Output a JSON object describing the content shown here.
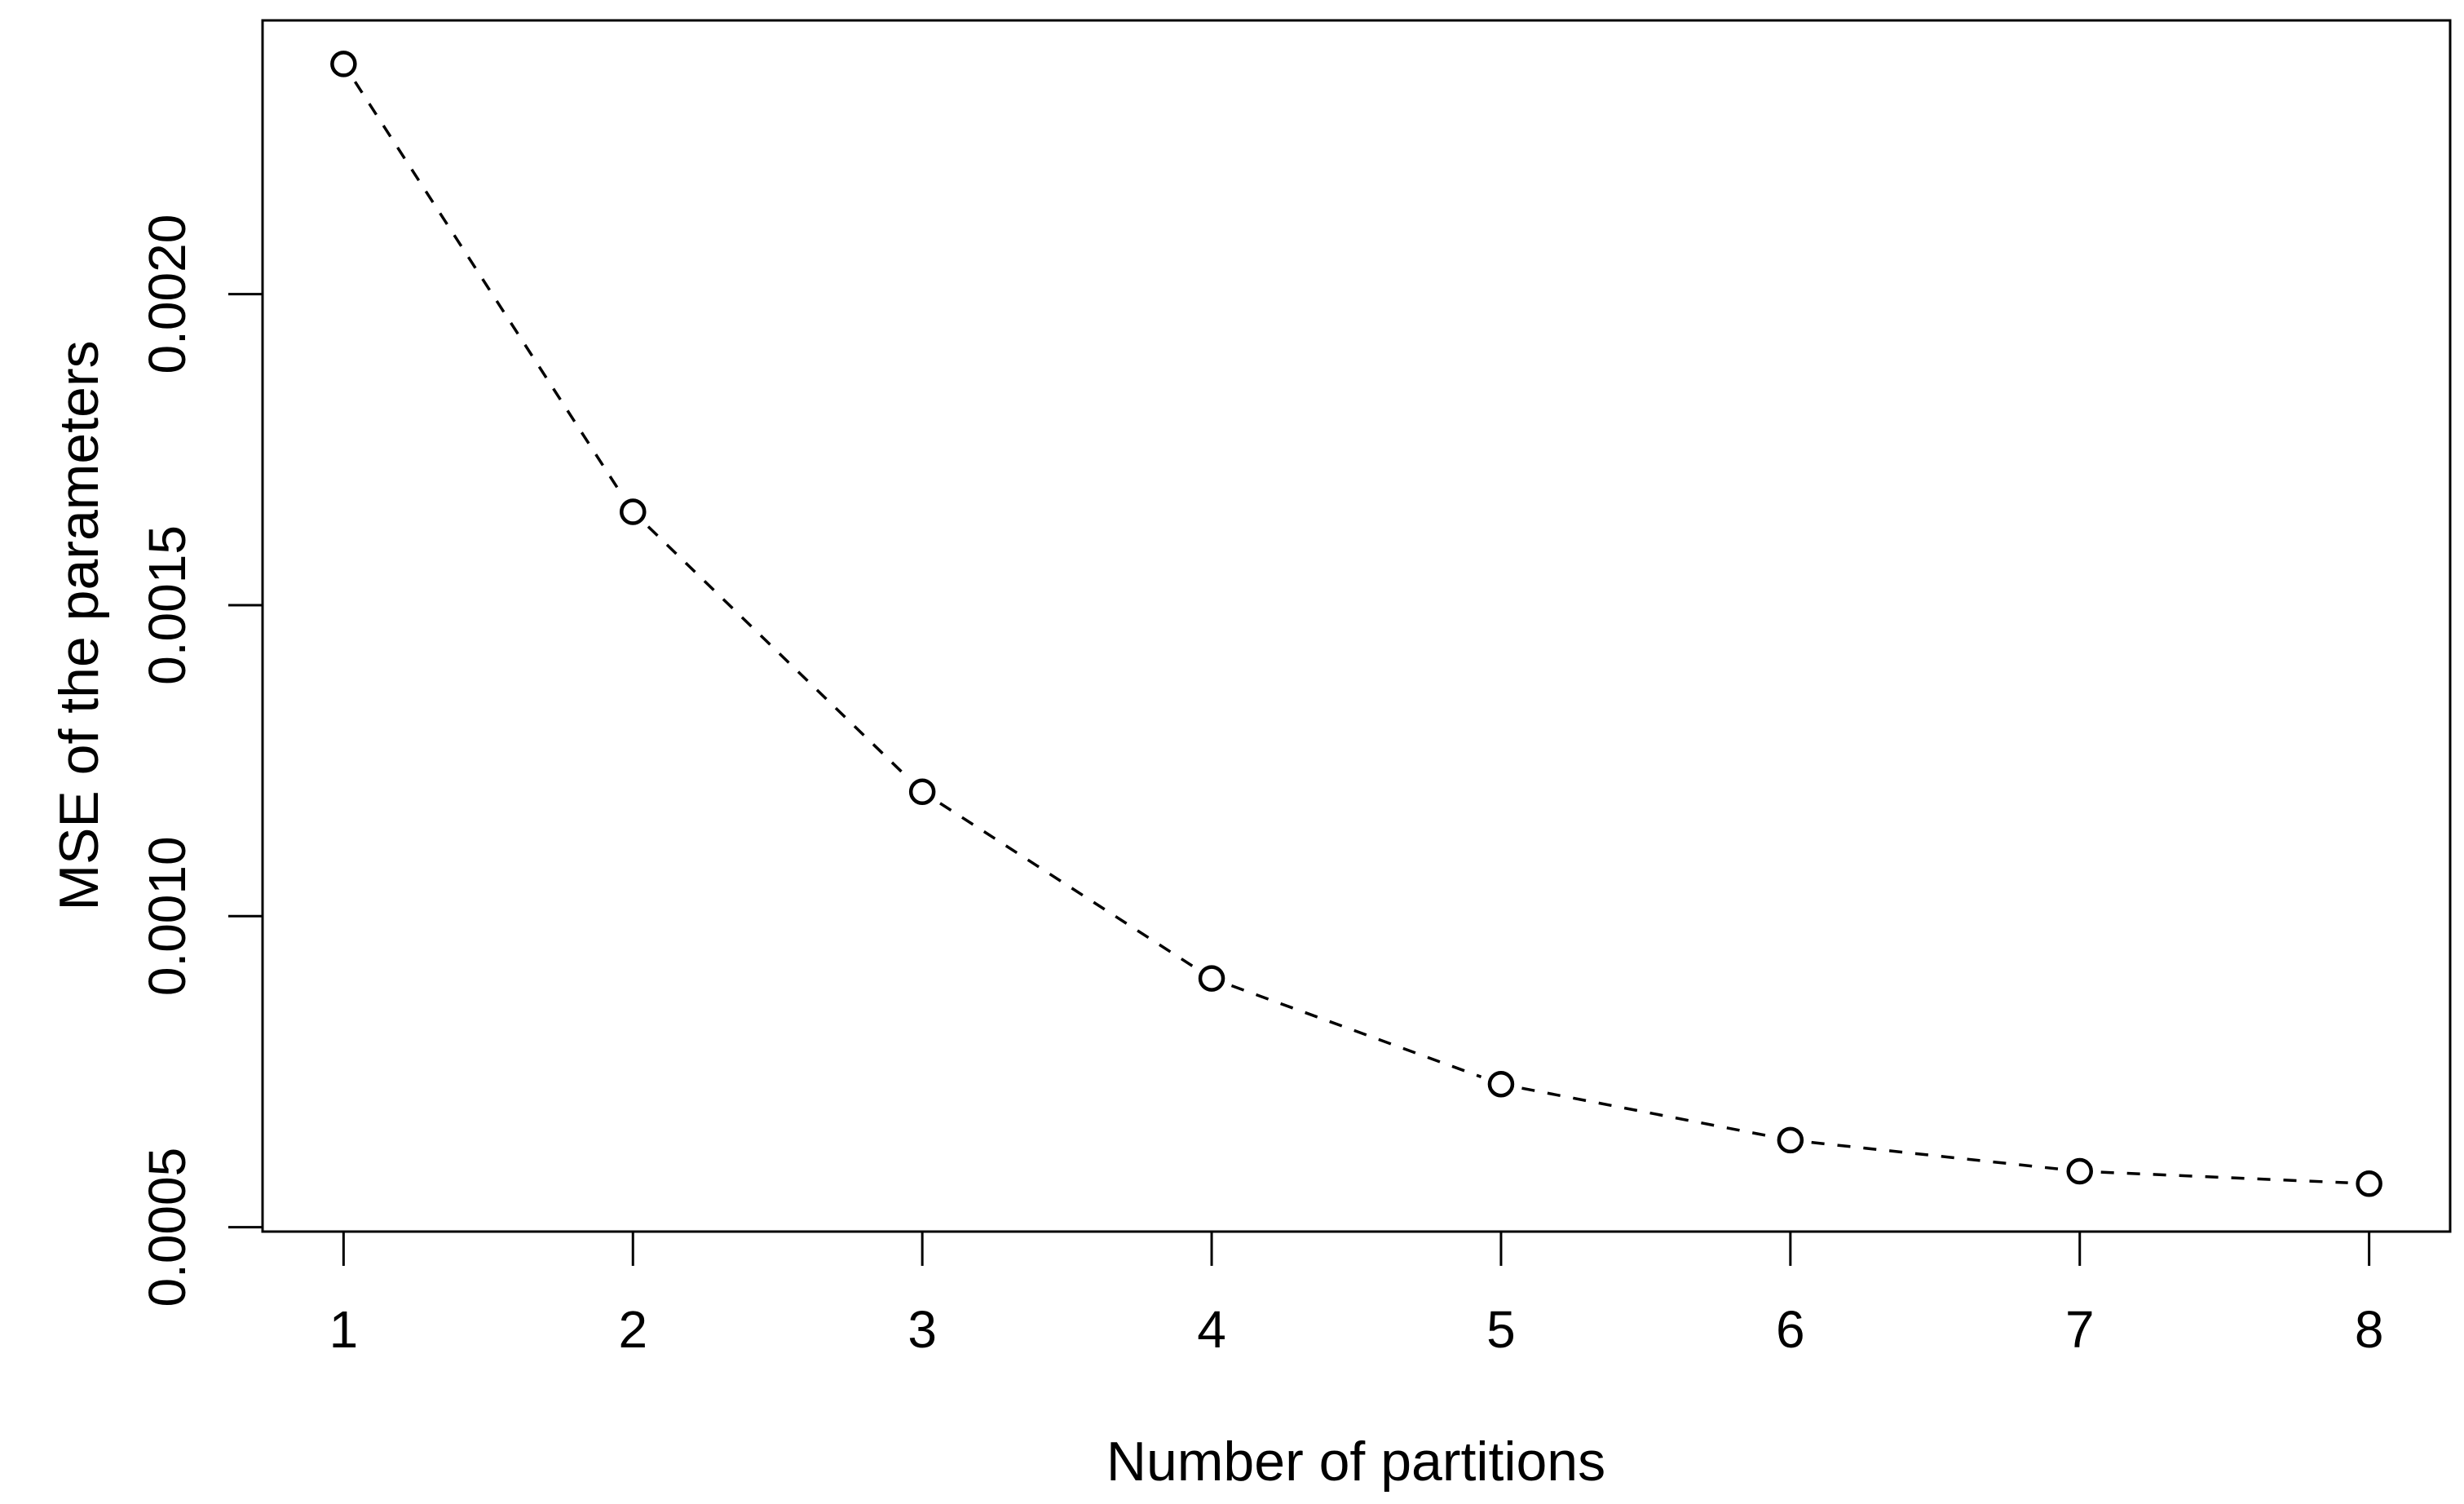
{
  "page": {
    "background": "#ffffff"
  },
  "chart_data": {
    "type": "line",
    "title": "",
    "xlabel": "Number of partitions",
    "ylabel": "MSE of the parameters",
    "x": [
      1,
      2,
      3,
      4,
      5,
      6,
      7,
      8
    ],
    "series": [
      {
        "name": "MSE of the parameters",
        "values": [
          0.00237,
          0.00165,
          0.0012,
          0.0009,
          0.00073,
          0.00064,
          0.00059,
          0.00057
        ]
      }
    ],
    "xlim": [
      0.72,
      8.28
    ],
    "ylim": [
      0.000493,
      0.00244
    ],
    "x_ticks": {
      "values": [
        1,
        2,
        3,
        4,
        5,
        6,
        7,
        8
      ],
      "labels": [
        "1",
        "2",
        "3",
        "4",
        "5",
        "6",
        "7",
        "8"
      ]
    },
    "y_ticks": {
      "values": [
        0.0005,
        0.001,
        0.0015,
        0.002
      ],
      "labels": [
        "0.0005",
        "0.0010",
        "0.0015",
        "0.0020"
      ]
    },
    "grid": false,
    "legend_position": "none",
    "line_style": "dashed",
    "marker": "open-circle",
    "colors": {
      "line": "#000000",
      "marker": "#000000",
      "axis": "#000000",
      "text": "#000000",
      "background": "#ffffff"
    }
  }
}
